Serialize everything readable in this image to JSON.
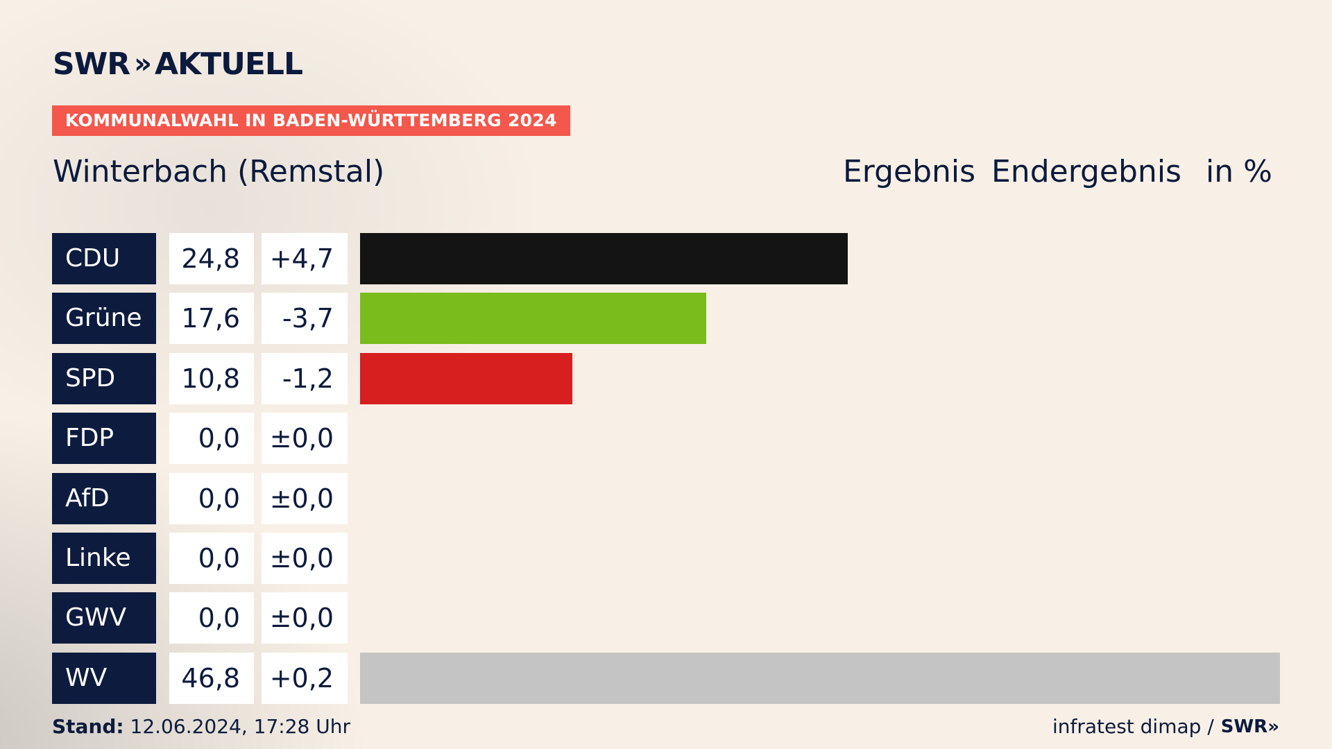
{
  "logo": {
    "text": "SWR",
    "chevrons": "»",
    "suffix": "AKTUELL"
  },
  "badge": "KOMMUNALWAHL IN BADEN-WÜRTTEMBERG 2024",
  "title": "Winterbach (Remstal)",
  "header": {
    "ergebnis": "Ergebnis",
    "endergebnis": "Endergebnis",
    "unit": "in %"
  },
  "chart_data": {
    "type": "bar",
    "orientation": "horizontal",
    "categories": [
      "CDU",
      "Grüne",
      "SPD",
      "FDP",
      "AfD",
      "Linke",
      "GWV",
      "WV"
    ],
    "values": [
      24.8,
      17.6,
      10.8,
      0.0,
      0.0,
      0.0,
      0.0,
      46.8
    ],
    "value_labels": [
      "24,8",
      "17,6",
      "10,8",
      "0,0",
      "0,0",
      "0,0",
      "0,0",
      "46,8"
    ],
    "diff_labels": [
      "+4,7",
      "-3,7",
      "-1,2",
      "±0,0",
      "±0,0",
      "±0,0",
      "±0,0",
      "+0,2"
    ],
    "colors": [
      "#141414",
      "#79bc1c",
      "#d71f1f",
      "#f5d800",
      "#1e9fd8",
      "#be1e5c",
      "#8c8c8c",
      "#c4c4c4"
    ],
    "xlim": [
      0,
      46.8
    ]
  },
  "footer": {
    "stand_label": "Stand:",
    "stand_value": "12.06.2024, 17:28 Uhr",
    "source": "infratest dimap /",
    "brand": "SWR»"
  }
}
